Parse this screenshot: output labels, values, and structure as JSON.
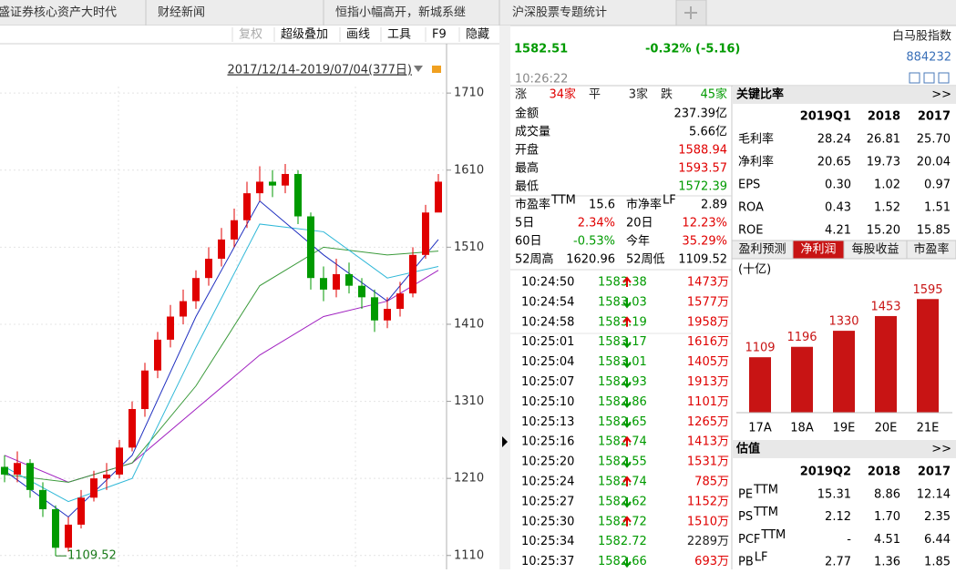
{
  "tabs": [
    "盛证券核心资产大时代",
    "财经新闻",
    "恒指小幅高开，新城系继",
    "沪深股票专题统计"
  ],
  "toolbar": [
    "复权",
    "超级叠加",
    "画线",
    "工具",
    "F9",
    "隐藏"
  ],
  "chart_data": [
    {
      "type": "candlestick",
      "range_label": "2017/12/14-2019/07/04(377日)",
      "ylim": [
        1092,
        1774
      ],
      "yticks": [
        1710,
        1610,
        1510,
        1410,
        1310,
        1210,
        1110
      ],
      "up_color": "#e00000",
      "down_color": "#009a00",
      "candles": [
        [
          1225,
          1215,
          1240,
          1205
        ],
        [
          1215,
          1230,
          1245,
          1205
        ],
        [
          1230,
          1195,
          1235,
          1185
        ],
        [
          1195,
          1170,
          1205,
          1160
        ],
        [
          1170,
          1120,
          1175,
          1109.52
        ],
        [
          1120,
          1150,
          1160,
          1115
        ],
        [
          1150,
          1185,
          1195,
          1145
        ],
        [
          1185,
          1210,
          1220,
          1180
        ],
        [
          1210,
          1215,
          1230,
          1195
        ],
        [
          1215,
          1250,
          1260,
          1210
        ],
        [
          1250,
          1300,
          1310,
          1245
        ],
        [
          1300,
          1350,
          1360,
          1290
        ],
        [
          1350,
          1390,
          1400,
          1340
        ],
        [
          1390,
          1420,
          1435,
          1380
        ],
        [
          1420,
          1440,
          1455,
          1410
        ],
        [
          1440,
          1470,
          1480,
          1430
        ],
        [
          1470,
          1495,
          1510,
          1460
        ],
        [
          1495,
          1520,
          1535,
          1485
        ],
        [
          1520,
          1545,
          1560,
          1510
        ],
        [
          1545,
          1580,
          1595,
          1535
        ],
        [
          1580,
          1595,
          1615,
          1570
        ],
        [
          1595,
          1590,
          1610,
          1575
        ],
        [
          1590,
          1605,
          1618,
          1580
        ],
        [
          1605,
          1550,
          1610,
          1540
        ],
        [
          1550,
          1470,
          1555,
          1455
        ],
        [
          1470,
          1455,
          1485,
          1440
        ],
        [
          1455,
          1475,
          1495,
          1445
        ],
        [
          1475,
          1460,
          1490,
          1450
        ],
        [
          1460,
          1445,
          1470,
          1430
        ],
        [
          1445,
          1415,
          1455,
          1400
        ],
        [
          1415,
          1430,
          1445,
          1405
        ],
        [
          1430,
          1450,
          1465,
          1420
        ],
        [
          1450,
          1500,
          1510,
          1445
        ],
        [
          1500,
          1555,
          1565,
          1495
        ],
        [
          1555,
          1595,
          1605,
          1580
        ]
      ],
      "ma_x": [
        0,
        5,
        10,
        15,
        20,
        25,
        30,
        34
      ],
      "ma_lines": [
        {
          "color": "#a020c0",
          "values": [
            1240,
            1205,
            1230,
            1300,
            1370,
            1420,
            1440,
            1480
          ]
        },
        {
          "color": "#3a9a3a",
          "values": [
            1215,
            1205,
            1230,
            1330,
            1460,
            1510,
            1500,
            1505
          ]
        },
        {
          "color": "#30b8d8",
          "values": [
            1225,
            1180,
            1210,
            1380,
            1540,
            1530,
            1470,
            1485
          ]
        },
        {
          "color": "#2030c0",
          "values": [
            1220,
            1160,
            1240,
            1420,
            1570,
            1500,
            1440,
            1520
          ]
        }
      ],
      "min_label": 1109.52,
      "min_index": 4
    },
    {
      "type": "bar",
      "unit": "(十亿)",
      "categories": [
        "17A",
        "18A",
        "19E",
        "20E",
        "21E"
      ],
      "values": [
        1109,
        1196,
        1330,
        1453,
        1595
      ],
      "color": "#c81414",
      "ylim": [
        646,
        1620
      ]
    }
  ],
  "quote": {
    "price": "1582.51",
    "change": "-0.32% (-5.16)",
    "time": "10:26:22",
    "name": "白马股指数",
    "code": "884232"
  },
  "breadth": [
    "涨",
    "34家",
    "平",
    "3家",
    "跌",
    "45家"
  ],
  "stats": [
    {
      "label": "金额",
      "value": "237.39亿",
      "color": "#000000"
    },
    {
      "label": "成交量",
      "value": "5.66亿",
      "color": "#000000"
    },
    {
      "label": "开盘",
      "value": "1588.94",
      "color": "#e00000"
    },
    {
      "label": "最高",
      "value": "1593.57",
      "color": "#e00000"
    },
    {
      "label": "最低",
      "value": "1572.39",
      "color": "#009a00"
    }
  ],
  "ratios": [
    [
      {
        "label": "市盈率",
        "sup": "TTM",
        "value": "15.6",
        "color": "#000000"
      },
      {
        "label": "市净率",
        "sup": "LF",
        "value": "2.89",
        "color": "#000000"
      }
    ],
    [
      {
        "label": "5日",
        "value": "2.34%",
        "color": "#e00000"
      },
      {
        "label": "20日",
        "value": "12.23%",
        "color": "#e00000"
      }
    ],
    [
      {
        "label": "60日",
        "value": "-0.53%",
        "color": "#009a00"
      },
      {
        "label": "今年",
        "value": "35.29%",
        "color": "#e00000"
      }
    ],
    [
      {
        "label": "52周高",
        "value": "1620.96",
        "color": "#000000"
      },
      {
        "label": "52周低",
        "value": "1109.52",
        "color": "#000000"
      }
    ]
  ],
  "ticks": [
    [
      "10:24:50",
      "1583.38",
      "up",
      "1473万"
    ],
    [
      "10:24:54",
      "1583.03",
      "down",
      "1577万"
    ],
    [
      "10:24:58",
      "1583.19",
      "up",
      "1958万"
    ],
    [
      "10:25:01",
      "1583.17",
      "down",
      "1616万"
    ],
    [
      "10:25:04",
      "1583.01",
      "down",
      "1405万"
    ],
    [
      "10:25:07",
      "1582.93",
      "down",
      "1913万"
    ],
    [
      "10:25:10",
      "1582.86",
      "down",
      "1101万"
    ],
    [
      "10:25:13",
      "1582.65",
      "down",
      "1265万"
    ],
    [
      "10:25:16",
      "1582.74",
      "up",
      "1413万"
    ],
    [
      "10:25:20",
      "1582.55",
      "down",
      "1531万"
    ],
    [
      "10:25:24",
      "1582.74",
      "up",
      "785万"
    ],
    [
      "10:25:27",
      "1582.62",
      "down",
      "1152万"
    ],
    [
      "10:25:30",
      "1582.72",
      "up",
      "1510万"
    ],
    [
      "10:25:34",
      "1582.72",
      null,
      "2289万"
    ],
    [
      "10:25:37",
      "1582.66",
      "down",
      "693万"
    ]
  ],
  "key_ratios": {
    "title": "关键比率",
    "more": ">>",
    "header": [
      "2019Q1",
      "2018",
      "2017"
    ],
    "rows": [
      [
        "毛利率",
        "28.24",
        "26.81",
        "25.70"
      ],
      [
        "净利率",
        "20.65",
        "19.73",
        "20.04"
      ],
      [
        "EPS",
        "0.30",
        "1.02",
        "0.97"
      ],
      [
        "ROA",
        "0.43",
        "1.52",
        "1.51"
      ],
      [
        "ROE",
        "4.21",
        "15.20",
        "15.85"
      ]
    ]
  },
  "forecast_tabs": [
    "盈利预测",
    "净利润",
    "每股收益",
    "市盈率"
  ],
  "valuation": {
    "title": "估值",
    "more": ">>",
    "header": [
      "2019Q2",
      "2018",
      "2017"
    ],
    "rows": [
      {
        "label": "PE",
        "sup": "TTM",
        "cells": [
          "15.31",
          "8.86",
          "12.14"
        ]
      },
      {
        "label": "PS",
        "sup": "TTM",
        "cells": [
          "2.12",
          "1.70",
          "2.35"
        ]
      },
      {
        "label": "PCF",
        "sup": "TTM",
        "cells": [
          "-",
          "4.51",
          "6.44"
        ]
      },
      {
        "label": "PB",
        "sup": "LF",
        "cells": [
          "2.77",
          "1.36",
          "1.85"
        ]
      }
    ]
  }
}
